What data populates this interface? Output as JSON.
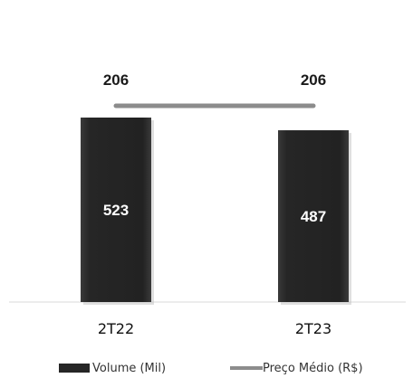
{
  "chart_data": {
    "type": "bar",
    "categories": [
      "2T22",
      "2T23"
    ],
    "series": [
      {
        "name": "Volume (Mil)",
        "kind": "bar",
        "values": [
          523,
          487
        ],
        "color": "#262626"
      },
      {
        "name": "Preço Médio (R$)",
        "kind": "line",
        "values": [
          206,
          206
        ],
        "color": "#8c8c8c"
      }
    ],
    "title": "",
    "xlabel": "",
    "ylabel": "",
    "bar_label_color": "#ffffff",
    "line_label_color": "#1a1a1a",
    "grid": false,
    "legend_position": "bottom"
  }
}
